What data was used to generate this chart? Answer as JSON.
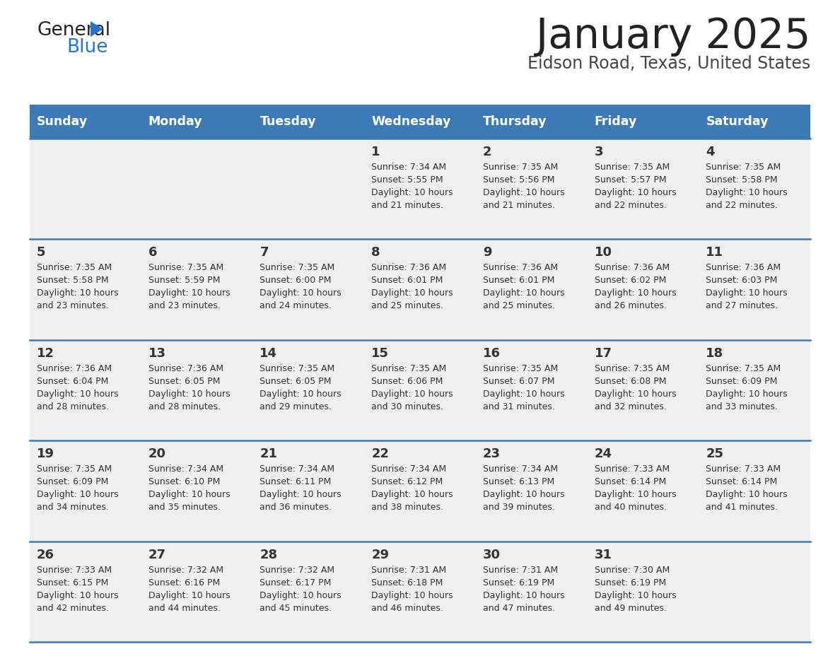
{
  "title": "January 2025",
  "subtitle": "Eidson Road, Texas, United States",
  "days_of_week": [
    "Sunday",
    "Monday",
    "Tuesday",
    "Wednesday",
    "Thursday",
    "Friday",
    "Saturday"
  ],
  "header_bg": "#3d7ab5",
  "header_text": "#ffffff",
  "cell_bg": "#efefef",
  "divider_color": "#3d7ab5",
  "text_color": "#333333",
  "title_color": "#222222",
  "subtitle_color": "#444444",
  "logo_black": "#222222",
  "logo_blue": "#2277cc",
  "calendar": [
    [
      {
        "day": "",
        "sunrise": "",
        "sunset": "",
        "daylight": ""
      },
      {
        "day": "",
        "sunrise": "",
        "sunset": "",
        "daylight": ""
      },
      {
        "day": "",
        "sunrise": "",
        "sunset": "",
        "daylight": ""
      },
      {
        "day": "1",
        "sunrise": "7:34 AM",
        "sunset": "5:55 PM",
        "daylight": "10 hours and 21 minutes."
      },
      {
        "day": "2",
        "sunrise": "7:35 AM",
        "sunset": "5:56 PM",
        "daylight": "10 hours and 21 minutes."
      },
      {
        "day": "3",
        "sunrise": "7:35 AM",
        "sunset": "5:57 PM",
        "daylight": "10 hours and 22 minutes."
      },
      {
        "day": "4",
        "sunrise": "7:35 AM",
        "sunset": "5:58 PM",
        "daylight": "10 hours and 22 minutes."
      }
    ],
    [
      {
        "day": "5",
        "sunrise": "7:35 AM",
        "sunset": "5:58 PM",
        "daylight": "10 hours and 23 minutes."
      },
      {
        "day": "6",
        "sunrise": "7:35 AM",
        "sunset": "5:59 PM",
        "daylight": "10 hours and 23 minutes."
      },
      {
        "day": "7",
        "sunrise": "7:35 AM",
        "sunset": "6:00 PM",
        "daylight": "10 hours and 24 minutes."
      },
      {
        "day": "8",
        "sunrise": "7:36 AM",
        "sunset": "6:01 PM",
        "daylight": "10 hours and 25 minutes."
      },
      {
        "day": "9",
        "sunrise": "7:36 AM",
        "sunset": "6:01 PM",
        "daylight": "10 hours and 25 minutes."
      },
      {
        "day": "10",
        "sunrise": "7:36 AM",
        "sunset": "6:02 PM",
        "daylight": "10 hours and 26 minutes."
      },
      {
        "day": "11",
        "sunrise": "7:36 AM",
        "sunset": "6:03 PM",
        "daylight": "10 hours and 27 minutes."
      }
    ],
    [
      {
        "day": "12",
        "sunrise": "7:36 AM",
        "sunset": "6:04 PM",
        "daylight": "10 hours and 28 minutes."
      },
      {
        "day": "13",
        "sunrise": "7:36 AM",
        "sunset": "6:05 PM",
        "daylight": "10 hours and 28 minutes."
      },
      {
        "day": "14",
        "sunrise": "7:35 AM",
        "sunset": "6:05 PM",
        "daylight": "10 hours and 29 minutes."
      },
      {
        "day": "15",
        "sunrise": "7:35 AM",
        "sunset": "6:06 PM",
        "daylight": "10 hours and 30 minutes."
      },
      {
        "day": "16",
        "sunrise": "7:35 AM",
        "sunset": "6:07 PM",
        "daylight": "10 hours and 31 minutes."
      },
      {
        "day": "17",
        "sunrise": "7:35 AM",
        "sunset": "6:08 PM",
        "daylight": "10 hours and 32 minutes."
      },
      {
        "day": "18",
        "sunrise": "7:35 AM",
        "sunset": "6:09 PM",
        "daylight": "10 hours and 33 minutes."
      }
    ],
    [
      {
        "day": "19",
        "sunrise": "7:35 AM",
        "sunset": "6:09 PM",
        "daylight": "10 hours and 34 minutes."
      },
      {
        "day": "20",
        "sunrise": "7:34 AM",
        "sunset": "6:10 PM",
        "daylight": "10 hours and 35 minutes."
      },
      {
        "day": "21",
        "sunrise": "7:34 AM",
        "sunset": "6:11 PM",
        "daylight": "10 hours and 36 minutes."
      },
      {
        "day": "22",
        "sunrise": "7:34 AM",
        "sunset": "6:12 PM",
        "daylight": "10 hours and 38 minutes."
      },
      {
        "day": "23",
        "sunrise": "7:34 AM",
        "sunset": "6:13 PM",
        "daylight": "10 hours and 39 minutes."
      },
      {
        "day": "24",
        "sunrise": "7:33 AM",
        "sunset": "6:14 PM",
        "daylight": "10 hours and 40 minutes."
      },
      {
        "day": "25",
        "sunrise": "7:33 AM",
        "sunset": "6:14 PM",
        "daylight": "10 hours and 41 minutes."
      }
    ],
    [
      {
        "day": "26",
        "sunrise": "7:33 AM",
        "sunset": "6:15 PM",
        "daylight": "10 hours and 42 minutes."
      },
      {
        "day": "27",
        "sunrise": "7:32 AM",
        "sunset": "6:16 PM",
        "daylight": "10 hours and 44 minutes."
      },
      {
        "day": "28",
        "sunrise": "7:32 AM",
        "sunset": "6:17 PM",
        "daylight": "10 hours and 45 minutes."
      },
      {
        "day": "29",
        "sunrise": "7:31 AM",
        "sunset": "6:18 PM",
        "daylight": "10 hours and 46 minutes."
      },
      {
        "day": "30",
        "sunrise": "7:31 AM",
        "sunset": "6:19 PM",
        "daylight": "10 hours and 47 minutes."
      },
      {
        "day": "31",
        "sunrise": "7:30 AM",
        "sunset": "6:19 PM",
        "daylight": "10 hours and 49 minutes."
      },
      {
        "day": "",
        "sunrise": "",
        "sunset": "",
        "daylight": ""
      }
    ]
  ]
}
